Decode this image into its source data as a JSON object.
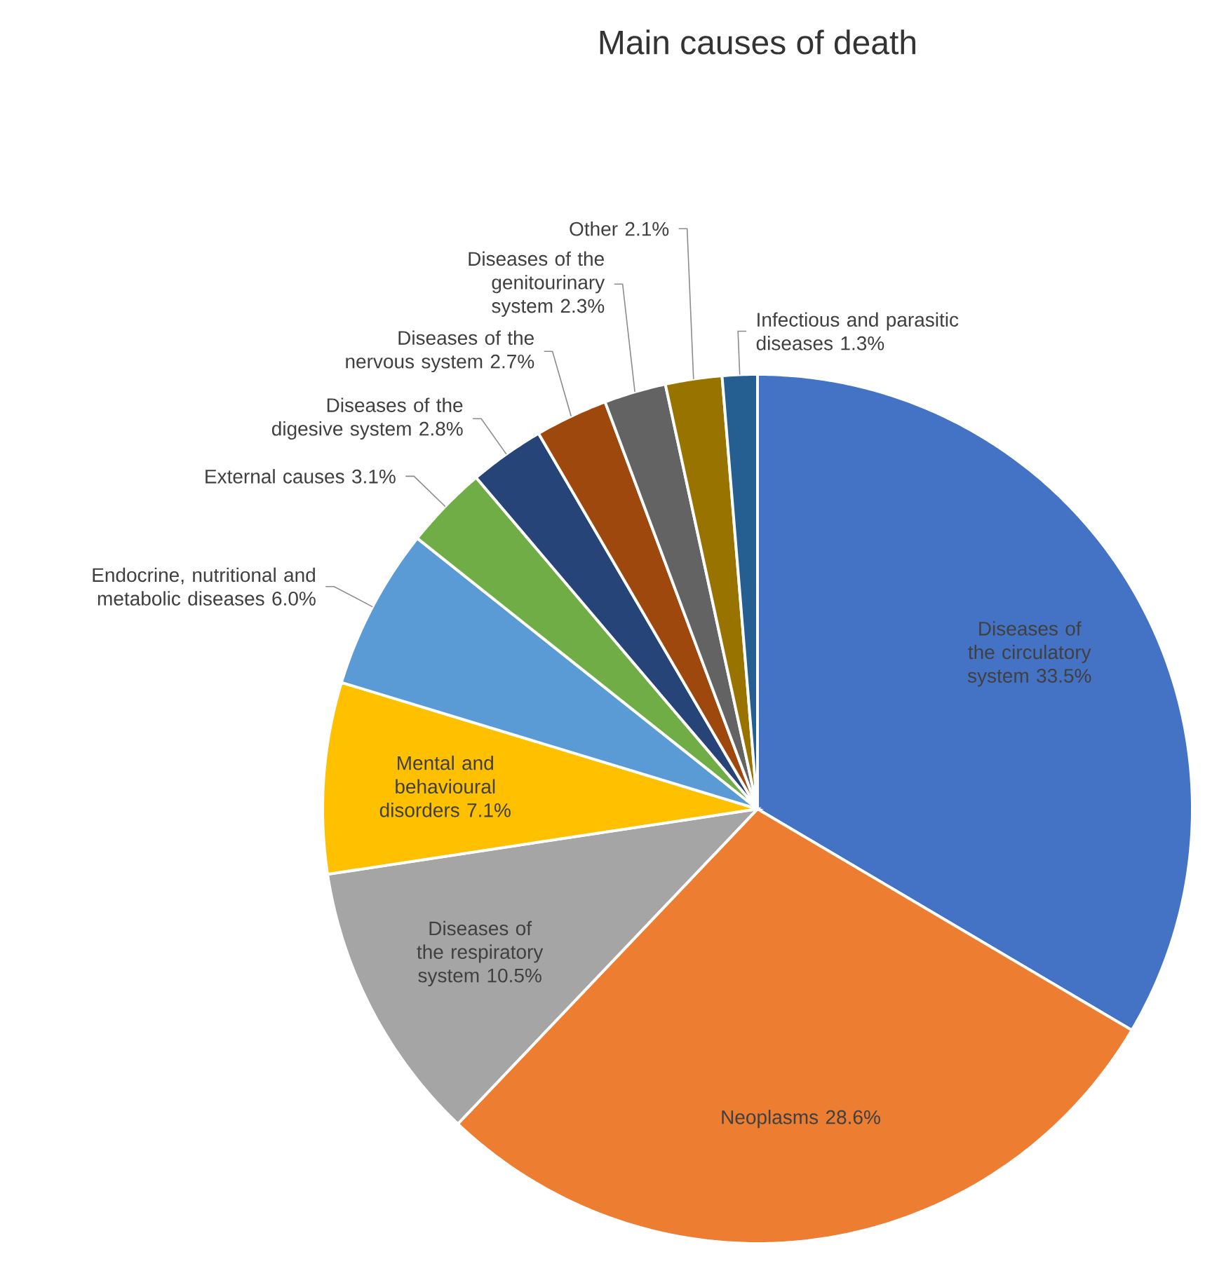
{
  "chart_data": {
    "type": "pie",
    "title": "Main causes of death",
    "categories": [
      "Diseases of the circulatory system",
      "Neoplasms",
      "Diseases of the respiratory system",
      "Mental and behavioural disorders",
      "Endocrine, nutritional and metabolic diseases",
      "External causes",
      "Diseases of the digesive system",
      "Diseases of the nervous system",
      "Diseases of the genitourinary system",
      "Other",
      "Infectious and parasitic diseases"
    ],
    "values": [
      33.5,
      28.6,
      10.5,
      7.1,
      6.0,
      3.1,
      2.8,
      2.7,
      2.3,
      2.1,
      1.3
    ],
    "value_labels": [
      "33.5%",
      "28.6%",
      "10.5%",
      "7.1%",
      "6.0%",
      "3.1%",
      "2.8%",
      "2.7%",
      "2.3%",
      "2.1%",
      "1.3%"
    ],
    "colors": [
      "#4472c4",
      "#ed7d31",
      "#a5a5a5",
      "#ffc000",
      "#5b9bd5",
      "#70ad47",
      "#264478",
      "#9e480e",
      "#636363",
      "#997300",
      "#255e91"
    ]
  }
}
